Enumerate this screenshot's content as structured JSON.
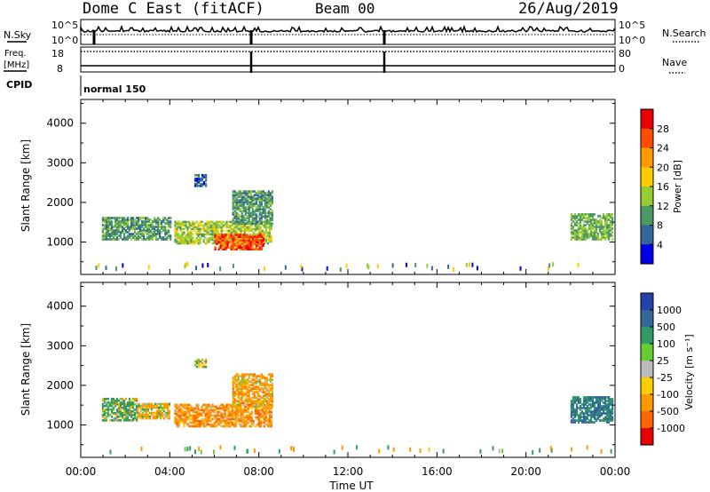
{
  "header": {
    "station": "Dome C East (fitACF)",
    "beam": "Beam 00",
    "date": "26/Aug/2019"
  },
  "top_panels": {
    "nsky_label": "N.Sky",
    "nsky_ticks": [
      "10^5",
      "10^0"
    ],
    "nsearch_label": "N.Search",
    "nsearch_ticks": [
      "10^5",
      "10^0"
    ],
    "freq_label_1": "Freq.",
    "freq_label_2": "[MHz]",
    "freq_ticks": [
      "18",
      "8"
    ],
    "nave_label": "Nave",
    "nave_ticks": [
      "80",
      "0"
    ],
    "cpid_label": "CPID",
    "cpid_value": "normal 150"
  },
  "axes": {
    "ylabel": "Slant Range [km]",
    "yticks": [
      "4000",
      "3000",
      "2000",
      "1000"
    ],
    "xticks": [
      "00:00",
      "04:00",
      "08:00",
      "12:00",
      "16:00",
      "20:00",
      "00:00"
    ],
    "xlabel": "Time UT"
  },
  "colorbars": {
    "power": {
      "label": "Power [dB]",
      "ticks": [
        "28",
        "24",
        "20",
        "16",
        "12",
        "8",
        "4"
      ],
      "colors": [
        "#e60000",
        "#ff4d00",
        "#ff9900",
        "#ffcc00",
        "#99cc33",
        "#4d9966",
        "#336699",
        "#0000e6"
      ]
    },
    "velocity": {
      "label": "Velocity [m s⁻¹]",
      "ticks": [
        "1000",
        "500",
        "100",
        "25",
        "-25",
        "-100",
        "-500",
        "-1000"
      ],
      "colors": [
        "#2244aa",
        "#336699",
        "#339966",
        "#66cc33",
        "#bbbbbb",
        "#ffcc00",
        "#ff9900",
        "#ff6600",
        "#e60000"
      ]
    }
  },
  "chart_data": [
    {
      "type": "heatmap",
      "title": "Power",
      "xlabel": "Time UT",
      "ylabel": "Slant Range [km]",
      "xlim": [
        0,
        24
      ],
      "ylim": [
        180,
        4600
      ],
      "colorbar_label": "Power [dB]",
      "colorbar_range": [
        0,
        32
      ],
      "blocks": [
        {
          "t": [
            0.95,
            4.0
          ],
          "r": [
            1050,
            1600
          ],
          "value": 10
        },
        {
          "t": [
            4.2,
            8.55
          ],
          "r": [
            950,
            1500
          ],
          "value": 14
        },
        {
          "t": [
            6.0,
            8.2
          ],
          "r": [
            800,
            1200
          ],
          "value": 26
        },
        {
          "t": [
            6.8,
            8.6
          ],
          "r": [
            1450,
            2300
          ],
          "value": 10
        },
        {
          "t": [
            5.1,
            5.6
          ],
          "r": [
            2400,
            2700
          ],
          "value": 6
        },
        {
          "t": [
            22.0,
            23.9
          ],
          "r": [
            1050,
            1700
          ],
          "value": 12
        }
      ]
    },
    {
      "type": "heatmap",
      "title": "Velocity",
      "xlabel": "Time UT",
      "ylabel": "Slant Range [km]",
      "xlim": [
        0,
        24
      ],
      "ylim": [
        180,
        4600
      ],
      "colorbar_label": "Velocity [m s⁻¹]",
      "colorbar_range": [
        -1000,
        1000
      ],
      "blocks": [
        {
          "t": [
            0.95,
            2.5
          ],
          "r": [
            1100,
            1650
          ],
          "value": 100
        },
        {
          "t": [
            2.5,
            4.0
          ],
          "r": [
            1150,
            1550
          ],
          "value": -100
        },
        {
          "t": [
            4.2,
            8.55
          ],
          "r": [
            950,
            1500
          ],
          "value": -200
        },
        {
          "t": [
            6.8,
            8.6
          ],
          "r": [
            1450,
            2300
          ],
          "value": -150
        },
        {
          "t": [
            5.1,
            5.6
          ],
          "r": [
            2450,
            2650
          ],
          "value": 0
        },
        {
          "t": [
            22.0,
            23.9
          ],
          "r": [
            1050,
            1700
          ],
          "value": 300
        }
      ]
    }
  ]
}
